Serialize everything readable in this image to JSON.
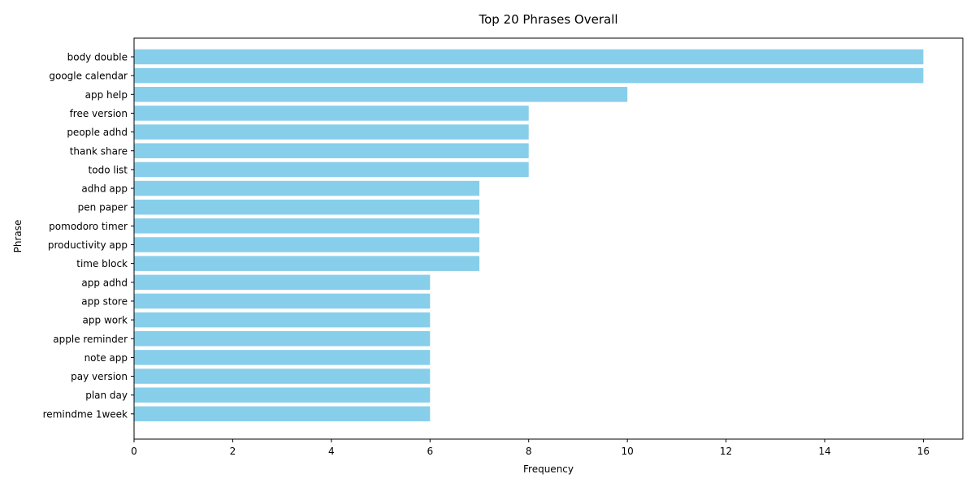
{
  "chart_data": {
    "type": "bar",
    "orientation": "horizontal",
    "title": "Top 20 Phrases Overall",
    "xlabel": "Frequency",
    "ylabel": "Phrase",
    "categories": [
      "body double",
      "google calendar",
      "app help",
      "free version",
      "people adhd",
      "thank share",
      "todo list",
      "adhd app",
      "pen paper",
      "pomodoro timer",
      "productivity app",
      "time block",
      "app adhd",
      "app store",
      "app work",
      "apple reminder",
      "note app",
      "pay version",
      "plan day",
      "remindme 1week"
    ],
    "values": [
      16,
      16,
      10,
      8,
      8,
      8,
      8,
      7,
      7,
      7,
      7,
      7,
      6,
      6,
      6,
      6,
      6,
      6,
      6,
      6
    ],
    "xlim": [
      0,
      16.8
    ],
    "xticks": [
      0,
      2,
      4,
      6,
      8,
      10,
      12,
      14,
      16
    ],
    "bar_color": "#87CEEB",
    "grid": false,
    "legend": "none"
  }
}
